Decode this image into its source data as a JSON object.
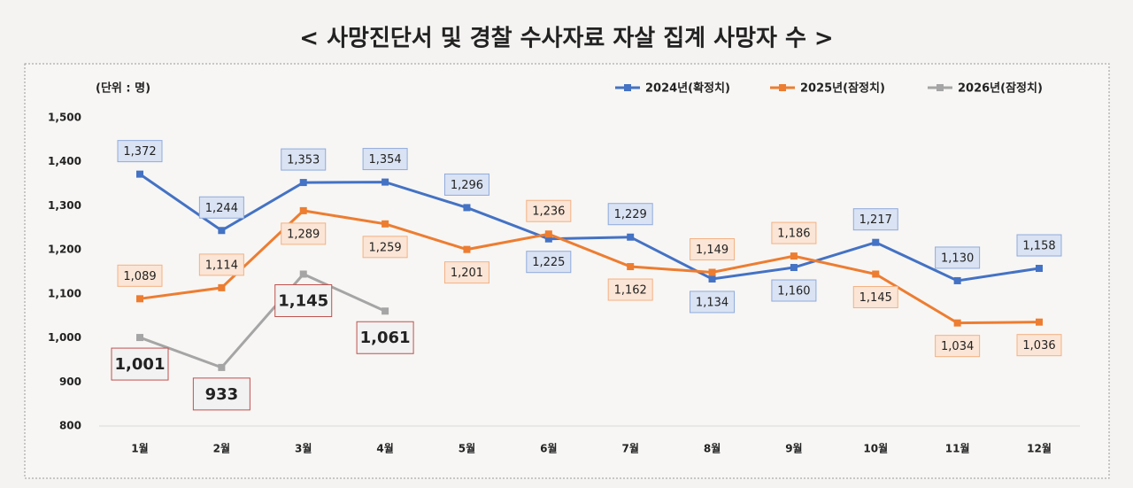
{
  "chart_data": {
    "type": "line",
    "title": "< 사망진단서 및 경찰 수사자료 자살 집계 사망자 수 >",
    "unit_label": "(단위 : 명)",
    "categories": [
      "1월",
      "2월",
      "3월",
      "4월",
      "5월",
      "6월",
      "7월",
      "8월",
      "9월",
      "10월",
      "11월",
      "12월"
    ],
    "series": [
      {
        "name": "2024년(확정치)",
        "color": "#4472c4",
        "values": [
          1372,
          1244,
          1353,
          1354,
          1296,
          1225,
          1229,
          1134,
          1160,
          1217,
          1130,
          1158
        ],
        "value_labels": [
          "1,372",
          "1,244",
          "1,353",
          "1,354",
          "1,296",
          "1,225",
          "1,229",
          "1,134",
          "1,160",
          "1,217",
          "1,130",
          "1,158"
        ]
      },
      {
        "name": "2025년(잠정치)",
        "color": "#ed7d31",
        "values": [
          1089,
          1114,
          1289,
          1259,
          1201,
          1236,
          1162,
          1149,
          1186,
          1145,
          1034,
          1036
        ],
        "value_labels": [
          "1,089",
          "1,114",
          "1,289",
          "1,259",
          "1,201",
          "1,236",
          "1,162",
          "1,149",
          "1,186",
          "1,145",
          "1,034",
          "1,036"
        ]
      },
      {
        "name": "2026년(잠정치)",
        "color": "#a5a5a5",
        "values": [
          1001,
          933,
          1145,
          1061,
          null,
          null,
          null,
          null,
          null,
          null,
          null,
          null
        ],
        "value_labels": [
          "1,001",
          "933",
          "1,145",
          "1,061",
          null,
          null,
          null,
          null,
          null,
          null,
          null,
          null
        ]
      }
    ],
    "ylim": [
      800,
      1500
    ],
    "yticks": [
      800,
      900,
      {
        "value": 1000,
        "label": "1,000"
      },
      {
        "value": 1100,
        "label": "1,100"
      },
      {
        "value": 1200,
        "label": "1,200"
      },
      {
        "value": 1300,
        "label": "1,300"
      },
      {
        "value": 1400,
        "label": "1,400"
      },
      {
        "value": 1500,
        "label": "1,500"
      }
    ],
    "legend": "top-right"
  }
}
